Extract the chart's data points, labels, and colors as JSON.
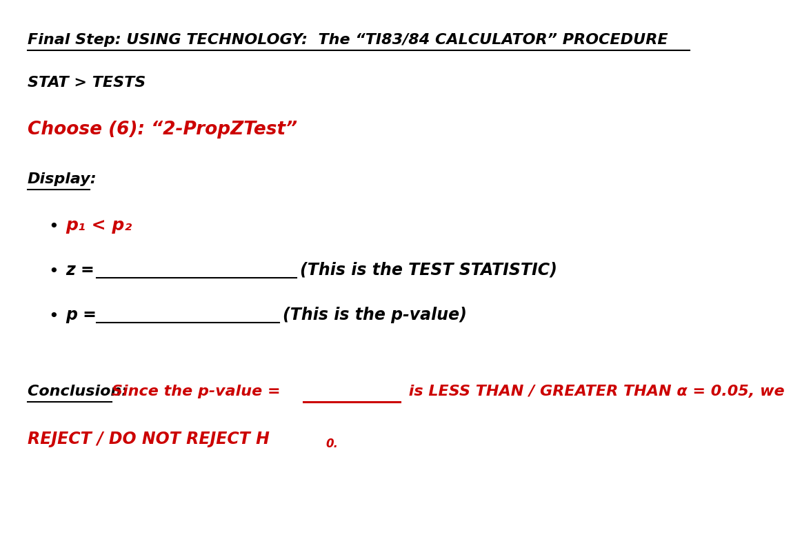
{
  "bg_color": "#ffffff",
  "title_line": "Final Step: USING TECHNOLOGY:  The “TI83/84 CALCULATOR” PROCEDURE",
  "stat_line": "STAT > TESTS",
  "choose_line": "Choose (6): “2-PropZTest”",
  "display_line": "Display:",
  "bullet1": "p₁ < p₂",
  "bullet2_pre": "z = ",
  "bullet2_post": "(This is the TEST STATISTIC)",
  "bullet3_pre": "p = ",
  "bullet3_post": "(This is the p-value)",
  "conclusion_label": "Conclusion: ",
  "conclusion_red": "Since the p-value = ",
  "conclusion_red2": " is LESS THAN / GREATER THAN α = 0.05, we",
  "reject_line": "REJECT / DO NOT REJECT H",
  "reject_sub": "0.",
  "black": "#000000",
  "red": "#cc0000",
  "title_fontsize": 16,
  "body_fontsize": 16,
  "choose_fontsize": 19,
  "conclusion_fontsize": 16
}
